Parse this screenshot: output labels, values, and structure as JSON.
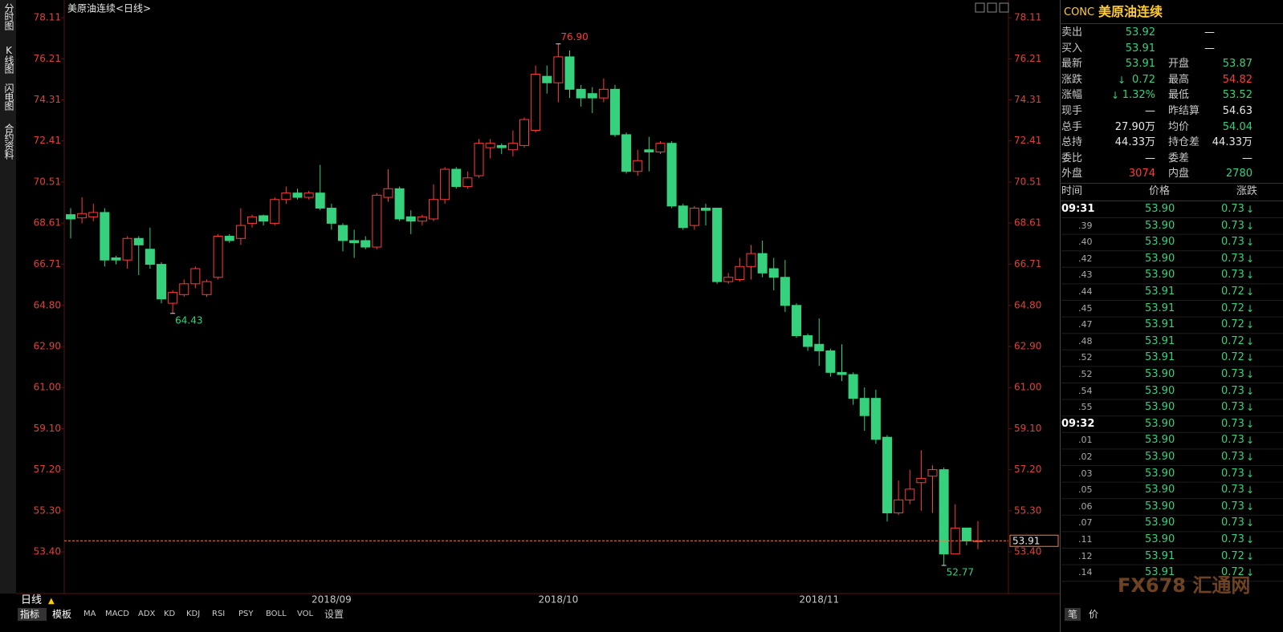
{
  "window": {
    "tabs_left": [
      "分时图",
      "K线图",
      "闪电图",
      "合约资料"
    ],
    "period": "日线",
    "tabs_bottom": [
      "指标",
      "模板",
      "MA",
      "MACD",
      "ADX",
      "KD",
      "KDJ",
      "RSI",
      "PSY",
      "BOLL",
      "VOL",
      "设置"
    ]
  },
  "chart_data": {
    "type": "candlestick",
    "title": "美原油连续<日线>",
    "categories": [
      null,
      null,
      null,
      null,
      null,
      null,
      null,
      null,
      null,
      null,
      null,
      null,
      null,
      null,
      null,
      null,
      null,
      null,
      null,
      null,
      null,
      null,
      null,
      "2018/09",
      null,
      null,
      null,
      null,
      null,
      null,
      null,
      null,
      null,
      null,
      null,
      null,
      null,
      null,
      null,
      null,
      null,
      null,
      null,
      "2018/10",
      null,
      null,
      null,
      null,
      null,
      null,
      null,
      null,
      null,
      null,
      null,
      null,
      null,
      null,
      null,
      null,
      null,
      null,
      null,
      null,
      null,
      null,
      "2018/11",
      null,
      null,
      null,
      null,
      null,
      null,
      null,
      null,
      null,
      null,
      null,
      null,
      null,
      null
    ],
    "open": [
      69.0,
      68.85,
      68.9,
      69.1,
      67.0,
      66.9,
      67.9,
      67.4,
      66.7,
      64.9,
      65.3,
      65.8,
      65.3,
      66.1,
      68.0,
      67.9,
      68.6,
      68.95,
      68.6,
      69.7,
      70.0,
      69.8,
      70.0,
      69.3,
      68.5,
      67.8,
      67.8,
      67.5,
      69.8,
      70.2,
      68.9,
      68.7,
      68.8,
      69.7,
      71.1,
      70.3,
      70.8,
      72.1,
      72.2,
      72.0,
      72.2,
      72.9,
      75.4,
      75.1,
      76.3,
      74.8,
      74.6,
      74.4,
      74.8,
      72.7,
      71.0,
      72.0,
      71.9,
      72.3,
      69.4,
      68.5,
      69.3,
      69.3,
      65.9,
      66.0,
      66.6,
      67.2,
      66.5,
      66.1,
      64.8,
      63.4,
      63.0,
      62.7,
      61.7,
      61.6,
      60.5,
      60.5,
      58.7,
      55.2,
      55.8,
      56.6,
      56.9,
      57.2,
      53.3,
      54.5,
      53.87
    ],
    "high": [
      69.3,
      69.8,
      69.5,
      69.3,
      67.1,
      68.0,
      68.0,
      68.4,
      66.8,
      65.5,
      66.0,
      66.6,
      66.0,
      68.1,
      68.1,
      69.3,
      69.0,
      69.0,
      69.8,
      70.3,
      70.2,
      70.1,
      71.3,
      69.5,
      68.6,
      68.3,
      68.0,
      70.0,
      71.1,
      70.3,
      69.2,
      69.0,
      70.4,
      71.2,
      71.2,
      71.0,
      72.5,
      72.5,
      72.3,
      72.9,
      73.5,
      75.9,
      75.9,
      76.9,
      76.6,
      75.0,
      74.9,
      75.3,
      75.0,
      72.8,
      72.0,
      72.6,
      72.4,
      72.4,
      69.5,
      69.4,
      69.5,
      69.3,
      66.3,
      67.0,
      67.6,
      67.8,
      67.0,
      66.9,
      64.9,
      63.5,
      64.2,
      62.8,
      63.0,
      61.7,
      61.0,
      60.9,
      58.8,
      56.7,
      57.2,
      58.1,
      57.4,
      57.3,
      55.6,
      54.5,
      54.82
    ],
    "low": [
      67.9,
      68.6,
      68.7,
      66.6,
      66.7,
      66.5,
      66.2,
      66.5,
      64.9,
      64.43,
      65.2,
      65.6,
      65.2,
      66.0,
      67.7,
      67.6,
      68.4,
      68.5,
      68.5,
      69.5,
      69.7,
      69.7,
      69.2,
      68.3,
      67.3,
      67.0,
      67.4,
      67.4,
      69.6,
      68.7,
      68.1,
      68.5,
      68.7,
      69.5,
      70.2,
      70.2,
      70.7,
      71.6,
      71.8,
      71.7,
      72.1,
      72.8,
      74.6,
      74.2,
      74.4,
      74.0,
      73.7,
      74.2,
      72.6,
      70.9,
      70.8,
      71.0,
      71.8,
      69.3,
      68.3,
      68.3,
      68.5,
      65.8,
      65.8,
      65.9,
      66.0,
      66.1,
      65.5,
      64.5,
      63.3,
      62.7,
      62.0,
      61.5,
      61.3,
      60.2,
      59.0,
      58.4,
      54.8,
      55.1,
      55.6,
      55.3,
      55.2,
      52.77,
      53.3,
      53.7,
      53.52
    ],
    "close": [
      68.8,
      69.05,
      69.1,
      66.9,
      66.9,
      67.9,
      67.6,
      66.7,
      65.1,
      65.4,
      65.8,
      66.5,
      65.9,
      68.0,
      67.8,
      68.5,
      68.9,
      68.7,
      69.7,
      70.0,
      69.8,
      70.0,
      69.3,
      68.6,
      67.8,
      67.7,
      67.5,
      69.9,
      70.2,
      68.8,
      68.7,
      68.9,
      69.7,
      71.1,
      70.3,
      70.7,
      72.3,
      72.3,
      72.1,
      72.3,
      73.4,
      75.5,
      75.1,
      76.3,
      74.8,
      74.4,
      74.4,
      74.8,
      72.7,
      71.0,
      71.5,
      71.9,
      72.3,
      69.4,
      68.4,
      69.3,
      69.2,
      65.9,
      66.1,
      66.6,
      67.2,
      66.3,
      66.1,
      64.8,
      63.4,
      62.9,
      62.7,
      61.7,
      61.6,
      60.5,
      59.7,
      58.6,
      55.2,
      55.8,
      56.3,
      56.8,
      57.2,
      53.3,
      54.5,
      53.9,
      53.91
    ],
    "up_color": "#ff3b3b",
    "down_color": "#36d17c",
    "axis_color": "#e0403c",
    "ylim": [
      51.47,
      78.56
    ],
    "yticks": [
      {
        "value": 53.4,
        "label": "53.40"
      },
      {
        "value": 55.3,
        "label": "55.30"
      },
      {
        "value": 57.2,
        "label": "57.20"
      },
      {
        "value": 59.1,
        "label": "59.10"
      },
      {
        "value": 61.0,
        "label": "61.00"
      },
      {
        "value": 62.9,
        "label": "62.90"
      },
      {
        "value": 64.8,
        "label": "64.80"
      },
      66.71,
      68.61,
      70.51,
      72.41,
      74.31,
      76.21,
      78.11
    ],
    "annotations": [
      {
        "value": 76.9,
        "label": "76.90"
      },
      64.43,
      52.77
    ],
    "last_price": {
      "value": 53.91,
      "label": "53.91",
      "color": "#ff7a3d"
    }
  },
  "quote": {
    "symbol": "CONC",
    "name": "美原油连续",
    "rows": [
      [
        {
          "text": "卖出"
        },
        {
          "text": "53.92",
          "color": "#36d17c"
        },
        {
          "text": "—"
        }
      ],
      [
        {
          "text": "买入"
        },
        {
          "text": "53.91",
          "color": "#36d17c"
        },
        {
          "text": "—"
        }
      ],
      [
        {
          "text": "最新"
        },
        {
          "text": "53.91",
          "color": "#36d17c"
        },
        {
          "text": "开盘"
        },
        {
          "text": "53.87",
          "color": "#36d17c"
        }
      ],
      [
        {
          "text": "涨跌"
        },
        {
          "text": "0.72",
          "color": "#36d17c",
          "arrow": "down"
        },
        {
          "text": "最高"
        },
        {
          "text": "54.82",
          "color": "#ff3b3b"
        }
      ],
      [
        {
          "text": "涨幅"
        },
        {
          "text": "1.32%",
          "color": "#36d17c",
          "arrow": "down"
        },
        {
          "text": "最低"
        },
        {
          "text": "53.52",
          "color": "#36d17c"
        }
      ],
      [
        {
          "text": "现手"
        },
        {
          "text": "—"
        },
        {
          "text": "昨结算"
        },
        {
          "text": "54.63"
        }
      ],
      [
        {
          "text": "总手"
        },
        {
          "text": "27.90万"
        },
        {
          "text": "均价"
        },
        {
          "text": "54.04",
          "color": "#36d17c"
        }
      ],
      [
        {
          "text": "总持"
        },
        {
          "text": "44.33万"
        },
        {
          "text": "持仓差"
        },
        {
          "text": "44.33万"
        }
      ],
      [
        {
          "text": "委比"
        },
        {
          "text": "—"
        },
        {
          "text": "委差"
        },
        {
          "text": "—"
        }
      ],
      [
        {
          "text": "外盘"
        },
        {
          "text": "3074",
          "color": "#ff3b3b"
        },
        {
          "text": "内盘"
        },
        {
          "text": "2780",
          "color": "#36d17c"
        }
      ]
    ]
  },
  "ticks": {
    "header": [
      "时间",
      "价格",
      "涨跌"
    ],
    "color": "#36d17c",
    "rows": [
      {
        "time": "09:31",
        "price": "53.90",
        "change": "0.73"
      },
      {
        "time": ".39",
        "price": "53.90",
        "change": "0.73"
      },
      {
        "time": ".40",
        "price": "53.90",
        "change": "0.73"
      },
      {
        "time": ".42",
        "price": "53.90",
        "change": "0.73"
      },
      {
        "time": ".43",
        "price": "53.90",
        "change": "0.73"
      },
      {
        "time": ".44",
        "price": "53.91",
        "change": "0.72"
      },
      {
        "time": ".45",
        "price": "53.91",
        "change": "0.72"
      },
      {
        "time": ".47",
        "price": "53.91",
        "change": "0.72"
      },
      {
        "time": ".48",
        "price": "53.91",
        "change": "0.72"
      },
      {
        "time": ".52",
        "price": "53.91",
        "change": "0.72"
      },
      {
        "time": ".52",
        "price": "53.90",
        "change": "0.73"
      },
      {
        "time": ".54",
        "price": "53.90",
        "change": "0.73"
      },
      {
        "time": ".55",
        "price": "53.90",
        "change": "0.73"
      },
      {
        "time": "09:32",
        "price": "53.90",
        "change": "0.73"
      },
      {
        "time": ".01",
        "price": "53.90",
        "change": "0.73"
      },
      {
        "time": ".02",
        "price": "53.90",
        "change": "0.73"
      },
      {
        "time": ".03",
        "price": "53.90",
        "change": "0.73"
      },
      {
        "time": ".05",
        "price": "53.90",
        "change": "0.73"
      },
      {
        "time": ".06",
        "price": "53.90",
        "change": "0.73"
      },
      {
        "time": ".07",
        "price": "53.90",
        "change": "0.73"
      },
      {
        "time": ".11",
        "price": "53.90",
        "change": "0.73"
      },
      {
        "time": ".12",
        "price": "53.91",
        "change": "0.72"
      },
      {
        "time": ".14",
        "price": "53.91",
        "change": "0.72"
      }
    ]
  },
  "footer": {
    "buttons": [
      "笔",
      "价"
    ],
    "watermark": "FX678 汇通网"
  }
}
